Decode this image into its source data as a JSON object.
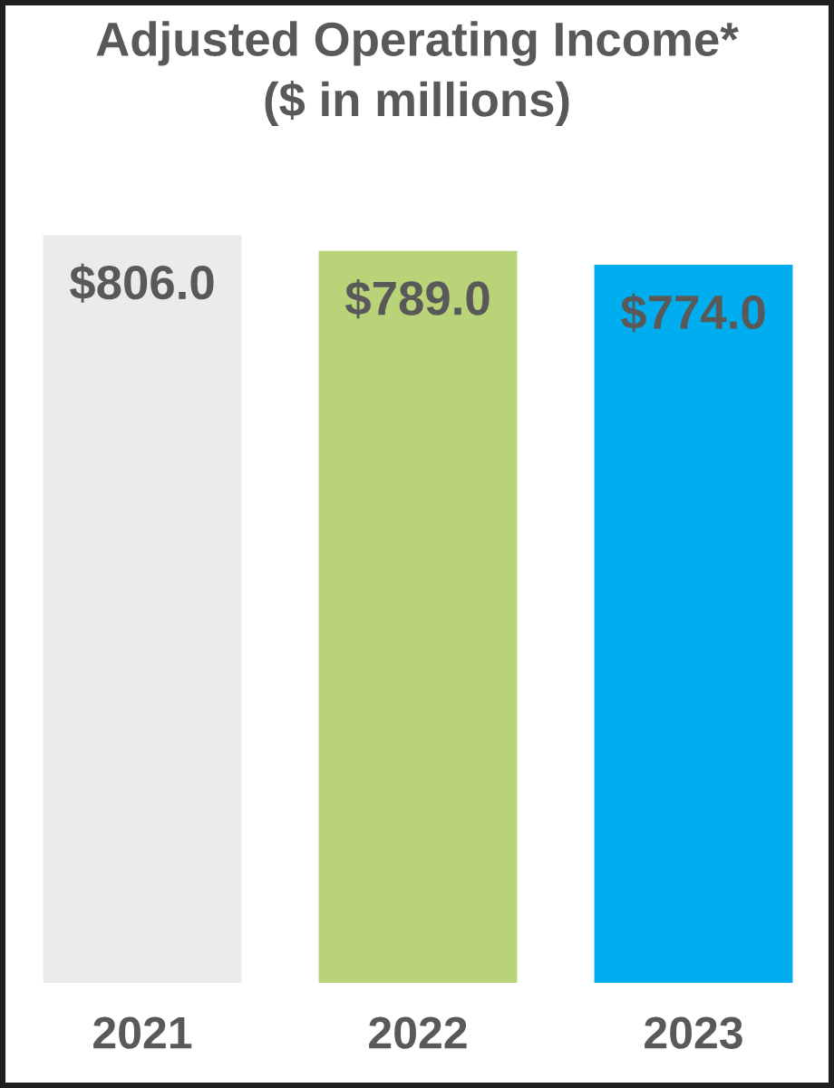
{
  "chart_data": {
    "type": "bar",
    "title": "Adjusted Operating Income*",
    "subtitle": "($ in millions)",
    "categories": [
      "2021",
      "2022",
      "2023"
    ],
    "values": [
      806.0,
      789.0,
      774.0
    ],
    "colors": [
      "#ebebe9",
      "#b8d378",
      "#00aeef"
    ],
    "value_labels": [
      "$806.0",
      "$789.0",
      "$774.0"
    ]
  }
}
